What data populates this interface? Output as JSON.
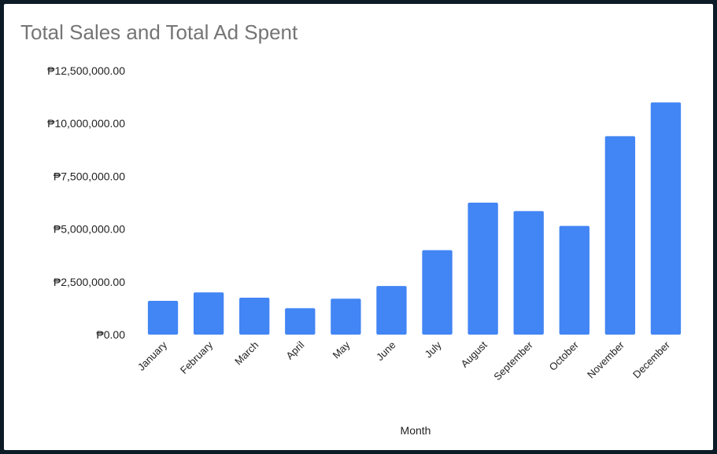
{
  "chart_data": {
    "type": "bar",
    "title": "Total Sales and Total Ad Spent",
    "xlabel": "Month",
    "ylabel": "",
    "ylim": [
      0,
      12500000
    ],
    "y_ticks": [
      {
        "value": 0,
        "label": "₱0.00"
      },
      {
        "value": 2500000,
        "label": "₱2,500,000.00"
      },
      {
        "value": 5000000,
        "label": "₱5,000,000.00"
      },
      {
        "value": 7500000,
        "label": "₱7,500,000.00"
      },
      {
        "value": 10000000,
        "label": "₱10,000,000.00"
      },
      {
        "value": 12500000,
        "label": "₱12,500,000.00"
      }
    ],
    "categories": [
      "January",
      "February",
      "March",
      "April",
      "May",
      "June",
      "July",
      "August",
      "September",
      "October",
      "November",
      "December"
    ],
    "values": [
      1600000,
      2000000,
      1750000,
      1250000,
      1700000,
      2300000,
      4000000,
      6250000,
      5850000,
      5150000,
      9400000,
      11000000
    ],
    "bar_color": "#4285f4",
    "grid": false,
    "legend": "none"
  }
}
